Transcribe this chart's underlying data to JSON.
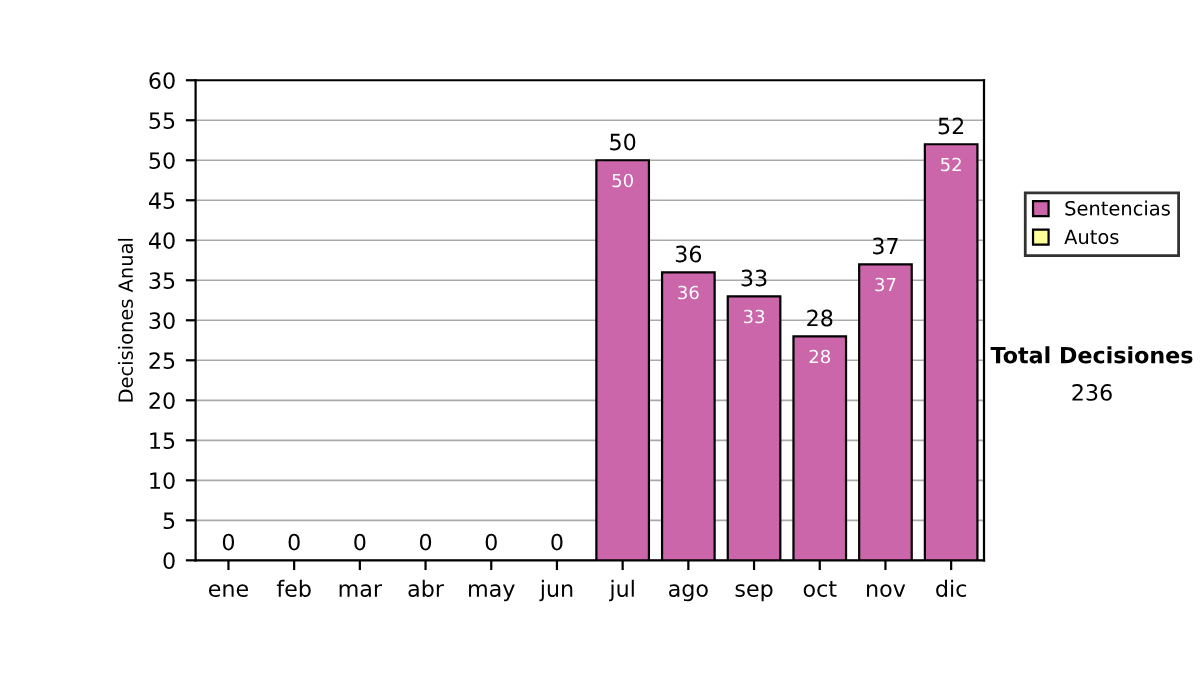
{
  "chart_data": {
    "type": "bar",
    "ylabel": "Decisiones Anual",
    "categories": [
      "ene",
      "feb",
      "mar",
      "abr",
      "may",
      "jun",
      "jul",
      "ago",
      "sep",
      "oct",
      "nov",
      "dic"
    ],
    "stacked": true,
    "series": [
      {
        "name": "Sentencias",
        "color": "#cc66aa",
        "values": [
          0,
          0,
          0,
          0,
          0,
          0,
          50,
          36,
          33,
          28,
          37,
          52
        ],
        "value_labels": [
          null,
          null,
          null,
          null,
          null,
          null,
          "50",
          "36",
          "33",
          "28",
          "37",
          "52"
        ]
      },
      {
        "name": "Autos",
        "color": "#ffff99",
        "values": [
          0,
          0,
          0,
          0,
          0,
          0,
          0,
          0,
          0,
          0,
          0,
          0
        ]
      }
    ],
    "totals": [
      "0",
      "0",
      "0",
      "0",
      "0",
      "0",
      "50",
      "36",
      "33",
      "28",
      "37",
      "52"
    ],
    "ylim": [
      0,
      60
    ],
    "yticks": [
      0,
      5,
      10,
      15,
      20,
      25,
      30,
      35,
      40,
      45,
      50,
      55,
      60
    ],
    "grid": "y",
    "legend": "right",
    "annotations": [
      "Total Decisiones",
      "236"
    ]
  }
}
